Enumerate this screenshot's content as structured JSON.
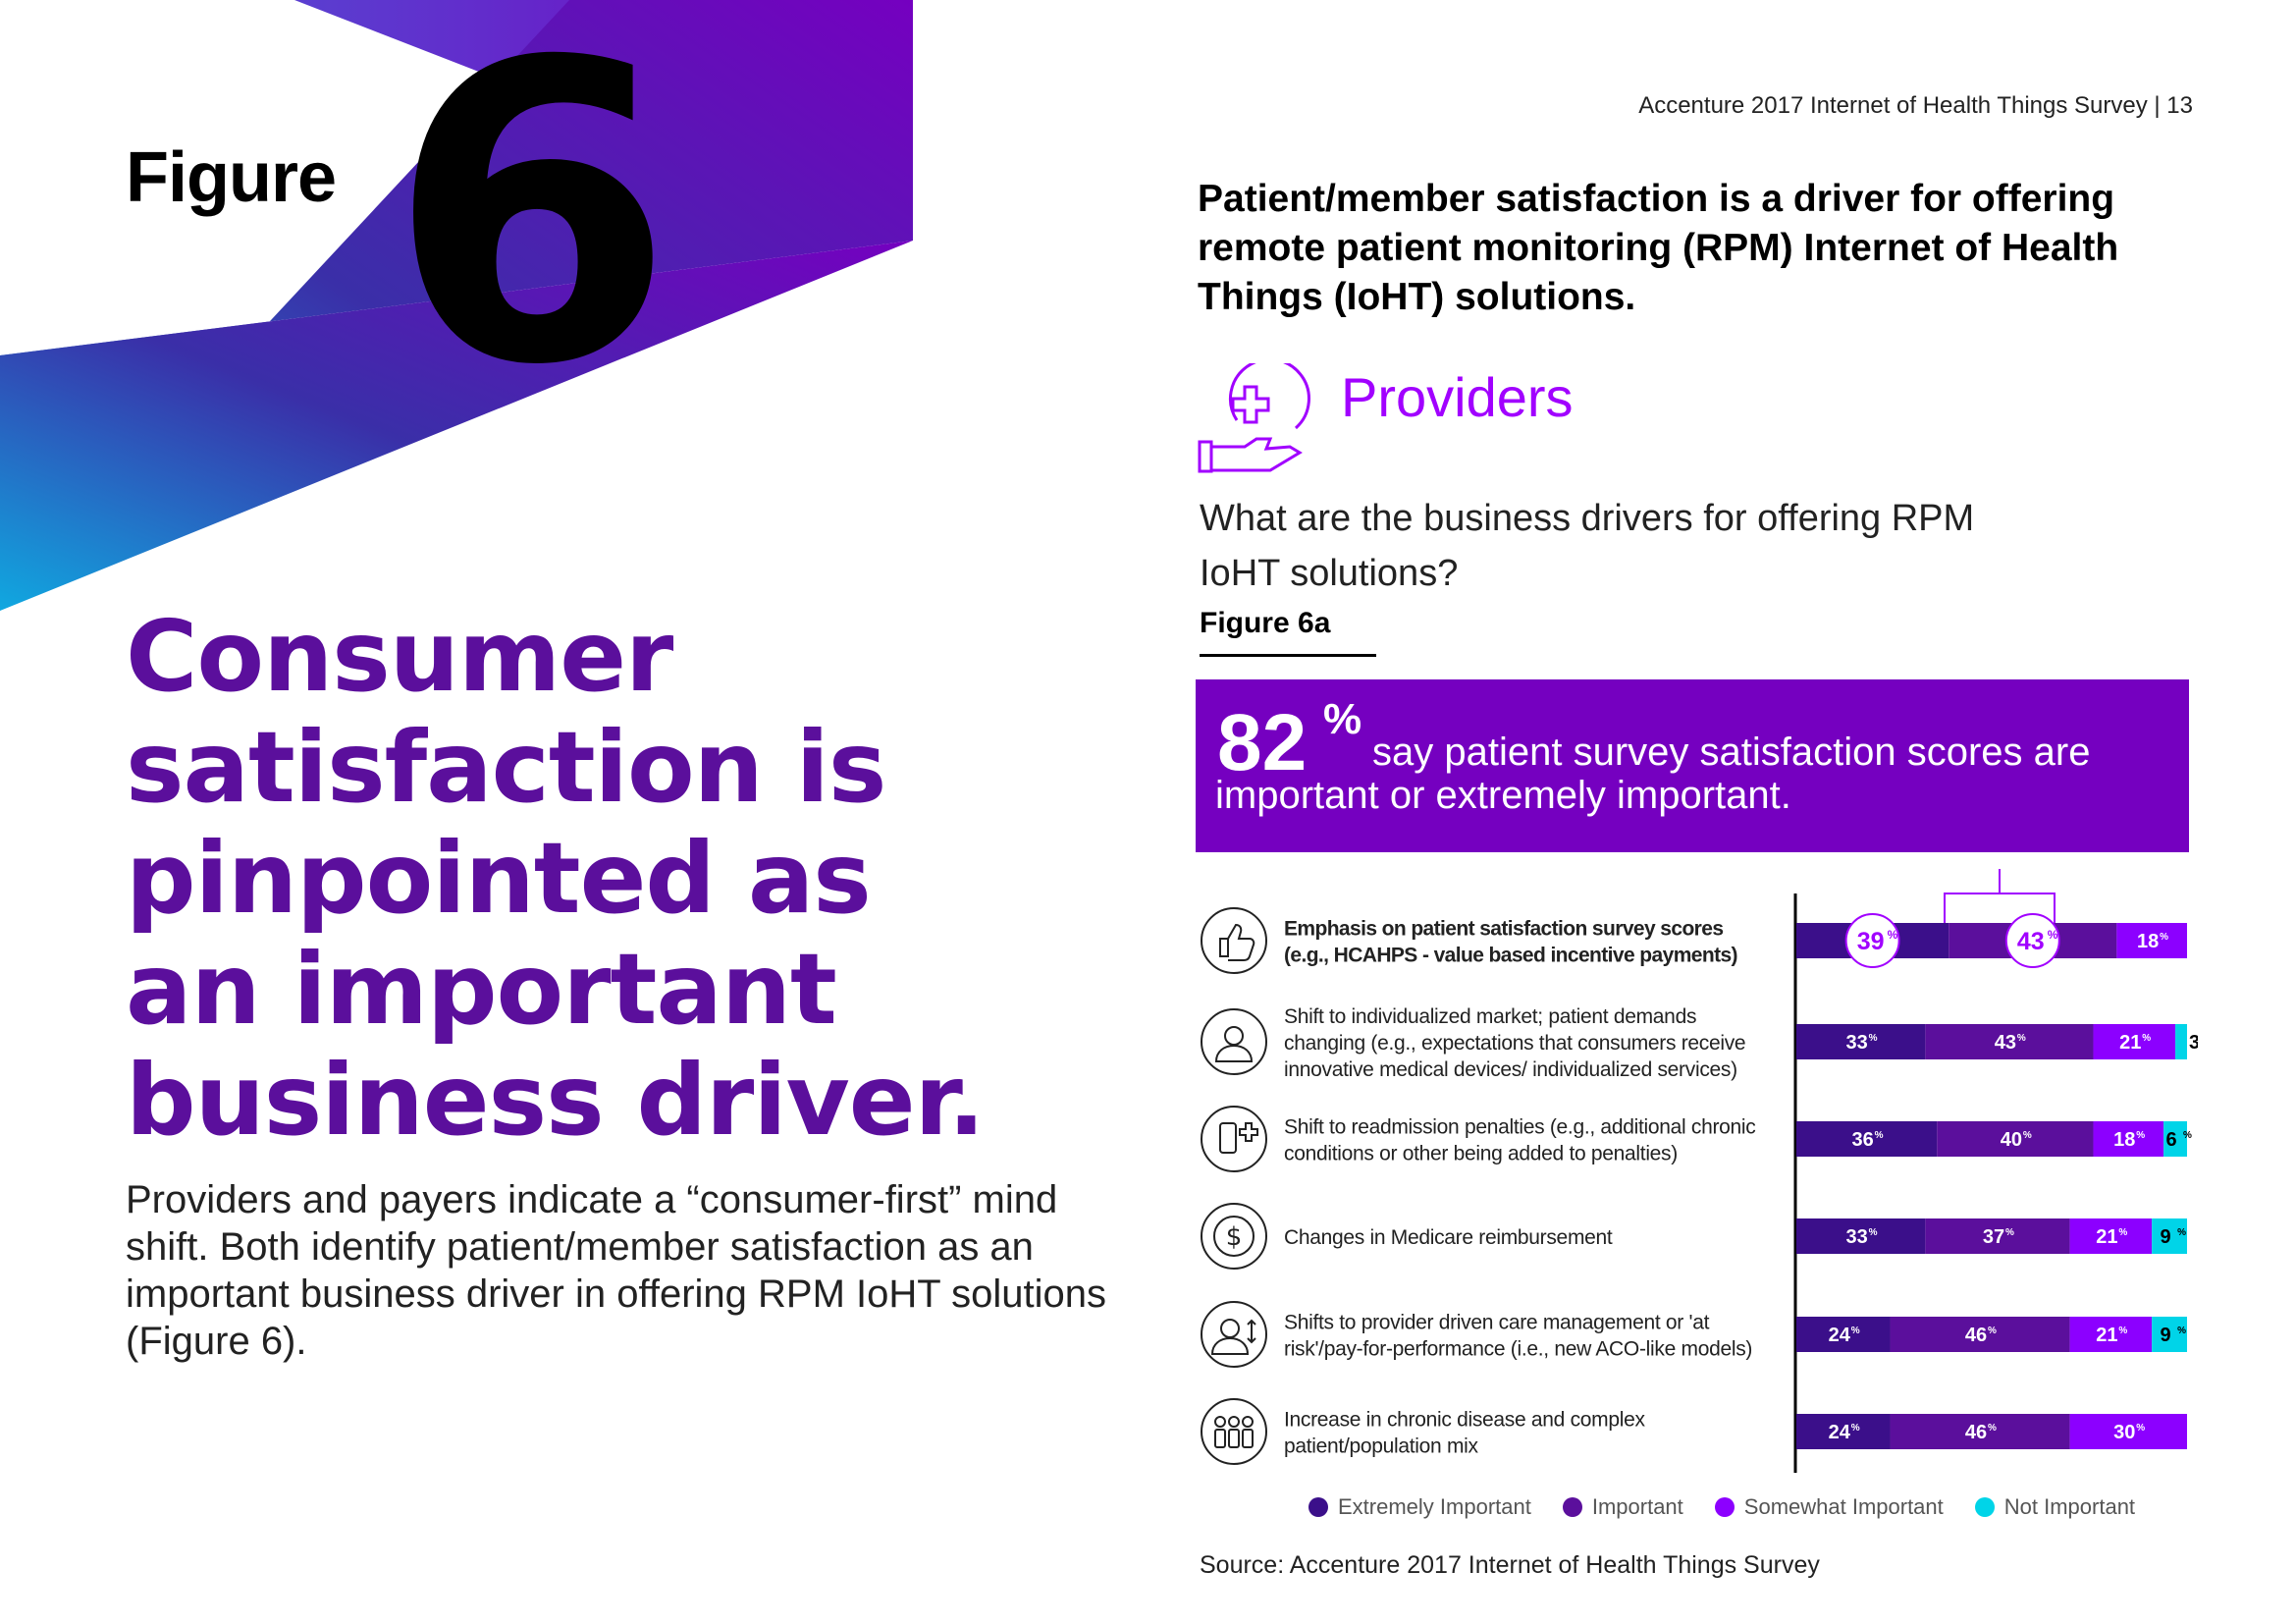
{
  "page_header": "Accenture 2017 Internet of Health Things Survey | 13",
  "figure_word": "Figure",
  "figure_number": "6",
  "headline": "Consumer satisfaction is pinpointed as an important business driver.",
  "body_text": "Providers and payers indicate a “consumer-first” mind shift. Both identify patient/member satisfaction as an important business driver in offering RPM IoHT solutions (Figure 6).",
  "section_title": "Patient/member satisfaction is a driver for offering remote patient monitoring (RPM) Internet of Health Things (IoHT) solutions.",
  "providers_label": "Providers",
  "question": "What are the business drivers for offering RPM IoHT solutions?",
  "figure_label": "Figure 6a",
  "callout": {
    "number": "82",
    "percent_sign": "%",
    "text": "say patient survey satisfaction scores are important or extremely important."
  },
  "colors": {
    "extremely": "#3b0f8a",
    "important": "#5b0f9c",
    "somewhat": "#8c00ff",
    "not": "#00d4e8",
    "accent": "#a100ff",
    "callout_bg": "#7500c0"
  },
  "icons": [
    "thumbs-up-icon",
    "person-icon",
    "hospital-patient-icon",
    "dollar-cycle-icon",
    "doctor-icon",
    "group-icon"
  ],
  "chart_data": {
    "type": "bar",
    "orientation": "horizontal-stacked-100",
    "categories": [
      "Emphasis on patient satisfaction survey scores (e.g., HCAHPS - value based incentive payments)",
      "Shift to individualized market; patient demands changing (e.g., expectations that consumers receive innovative medical devices/ individualized services)",
      "Shift to readmission penalties (e.g., additional chronic conditions or other being added to penalties)",
      "Changes in Medicare reimbursement",
      "Shifts to provider driven care management or 'at risk'/pay-for-performance (i.e., new ACO-like models)",
      "Increase in chronic disease and complex patient/population mix"
    ],
    "series": [
      {
        "name": "Extremely Important",
        "values": [
          39,
          33,
          36,
          33,
          24,
          24
        ]
      },
      {
        "name": "Important",
        "values": [
          43,
          43,
          40,
          37,
          46,
          46
        ]
      },
      {
        "name": "Somewhat Important",
        "values": [
          18,
          21,
          18,
          21,
          21,
          30
        ]
      },
      {
        "name": "Not Important",
        "values": [
          0,
          3,
          6,
          9,
          9,
          0
        ]
      }
    ],
    "value_suffix": "%",
    "legend_position": "bottom",
    "xlim": [
      0,
      100
    ]
  },
  "source": "Source: Accenture 2017 Internet of Health Things Survey"
}
